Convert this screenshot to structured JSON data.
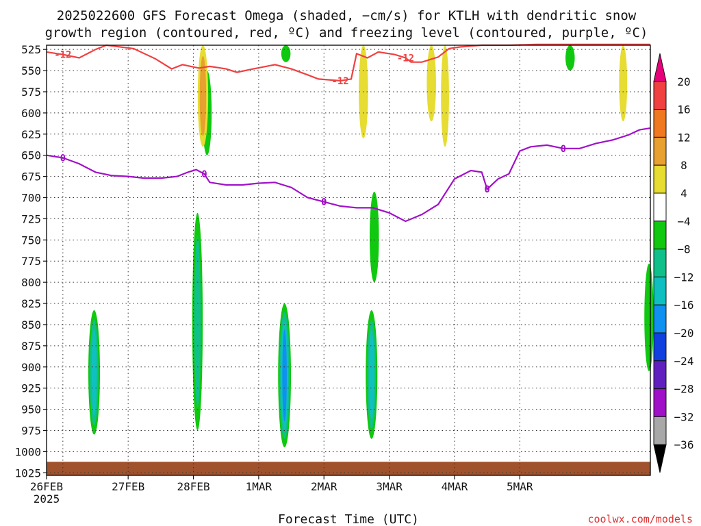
{
  "title_line1": "2025022600 GFS Forecast Omega (shaded, −cm/s) for KTLH with dendritic snow",
  "title_line2": "growth region (contoured, red, ºC) and freezing level (contoured, purple, ºC)",
  "credit": "coolwx.com/models",
  "chart_data": {
    "type": "time-height",
    "title": "2025022600 GFS Forecast Omega (shaded, −cm/s) for KTLH with dendritic snow growth region (contoured, red, ºC) and freezing level (contoured, purple, ºC)",
    "xlabel": "Forecast Time (UTC)",
    "x_ticks": [
      "26FEB",
      "27FEB",
      "28FEB",
      "1MAR",
      "2MAR",
      "3MAR",
      "4MAR",
      "5MAR"
    ],
    "x_tick_year": "2025",
    "xlim_hours": [
      0,
      222
    ],
    "y_ticks": [
      525,
      550,
      575,
      600,
      625,
      650,
      675,
      700,
      725,
      750,
      775,
      800,
      825,
      850,
      875,
      900,
      925,
      950,
      975,
      1000,
      1025
    ],
    "ylim_hPa": [
      520,
      1028
    ],
    "colorbar": {
      "ticks": [
        20,
        16,
        12,
        8,
        4,
        -4,
        -8,
        -12,
        -16,
        -20,
        -24,
        -28,
        -32,
        -36
      ],
      "bands": [
        {
          "lo": 20,
          "hi": 24,
          "color": "#e8007a"
        },
        {
          "lo": 16,
          "hi": 20,
          "color": "#f04040"
        },
        {
          "lo": 12,
          "hi": 16,
          "color": "#f07820"
        },
        {
          "lo": 8,
          "hi": 12,
          "color": "#e8a030"
        },
        {
          "lo": 4,
          "hi": 8,
          "color": "#e6dc32"
        },
        {
          "lo": -4,
          "hi": 4,
          "color": "#ffffff"
        },
        {
          "lo": -8,
          "hi": -4,
          "color": "#10c810"
        },
        {
          "lo": -12,
          "hi": -8,
          "color": "#10c08a"
        },
        {
          "lo": -16,
          "hi": -12,
          "color": "#10c0c0"
        },
        {
          "lo": -20,
          "hi": -16,
          "color": "#1090f0"
        },
        {
          "lo": -24,
          "hi": -20,
          "color": "#1040e0"
        },
        {
          "lo": -28,
          "hi": -24,
          "color": "#6020c0"
        },
        {
          "lo": -32,
          "hi": -28,
          "color": "#a010c8"
        },
        {
          "lo": -36,
          "hi": -32,
          "color": "#a8a8a8"
        },
        {
          "lo": -40,
          "hi": -36,
          "color": "#000000"
        }
      ]
    },
    "dendritic_minus12C_line": {
      "color": "#f04040",
      "label": "-12",
      "points": [
        [
          0,
          528
        ],
        [
          6,
          531
        ],
        [
          12,
          535
        ],
        [
          15,
          530
        ],
        [
          18,
          525
        ],
        [
          22,
          520
        ],
        [
          32,
          524
        ],
        [
          40,
          536
        ],
        [
          46,
          548
        ],
        [
          50,
          543
        ],
        [
          56,
          547
        ],
        [
          60,
          545
        ],
        [
          66,
          548
        ],
        [
          70,
          552
        ],
        [
          76,
          548
        ],
        [
          84,
          543
        ],
        [
          90,
          548
        ],
        [
          96,
          555
        ],
        [
          100,
          560
        ],
        [
          108,
          562
        ],
        [
          112,
          560
        ],
        [
          114,
          530
        ],
        [
          118,
          535
        ],
        [
          122,
          528
        ],
        [
          128,
          531
        ],
        [
          132,
          535
        ],
        [
          134,
          540
        ],
        [
          138,
          540
        ],
        [
          144,
          534
        ],
        [
          148,
          524
        ],
        [
          152,
          522
        ],
        [
          160,
          520
        ],
        [
          170,
          520
        ],
        [
          180,
          519
        ],
        [
          190,
          519
        ],
        [
          200,
          519
        ],
        [
          210,
          519
        ],
        [
          222,
          519
        ]
      ]
    },
    "freezing_level_0C_line": {
      "color": "#a010c8",
      "label": "0",
      "points": [
        [
          0,
          650
        ],
        [
          6,
          653
        ],
        [
          12,
          660
        ],
        [
          18,
          670
        ],
        [
          24,
          674
        ],
        [
          30,
          675
        ],
        [
          36,
          677
        ],
        [
          42,
          677
        ],
        [
          48,
          675
        ],
        [
          52,
          670
        ],
        [
          55,
          667
        ],
        [
          58,
          672
        ],
        [
          60,
          682
        ],
        [
          66,
          685
        ],
        [
          72,
          685
        ],
        [
          78,
          683
        ],
        [
          84,
          682
        ],
        [
          90,
          688
        ],
        [
          96,
          700
        ],
        [
          102,
          705
        ],
        [
          108,
          710
        ],
        [
          114,
          712
        ],
        [
          120,
          712
        ],
        [
          126,
          718
        ],
        [
          132,
          728
        ],
        [
          138,
          720
        ],
        [
          144,
          708
        ],
        [
          150,
          678
        ],
        [
          156,
          668
        ],
        [
          160,
          670
        ],
        [
          162,
          690
        ],
        [
          166,
          678
        ],
        [
          170,
          672
        ],
        [
          174,
          645
        ],
        [
          178,
          640
        ],
        [
          184,
          638
        ],
        [
          190,
          642
        ],
        [
          196,
          642
        ],
        [
          202,
          636
        ],
        [
          208,
          632
        ],
        [
          214,
          626
        ],
        [
          218,
          620
        ],
        [
          222,
          618
        ]
      ]
    },
    "omega_shaded_cells": [
      {
        "t": 17.5,
        "p_top": 833,
        "p_bot": 980,
        "max_abs_value": -16,
        "sign": "negative"
      },
      {
        "t": 55.5,
        "p_top": 718,
        "p_bot": 975,
        "max_abs_value": -12,
        "sign": "negative"
      },
      {
        "t": 87.5,
        "p_top": 825,
        "p_bot": 995,
        "max_abs_value": -20,
        "sign": "negative"
      },
      {
        "t": 119.5,
        "p_top": 833,
        "p_bot": 985,
        "max_abs_value": -16,
        "sign": "negative"
      },
      {
        "t": 120.5,
        "p_top": 693,
        "p_bot": 800,
        "max_abs_value": -8,
        "sign": "negative"
      },
      {
        "t": 59.0,
        "p_top": 550,
        "p_bot": 650,
        "max_abs_value": -8,
        "sign": "negative"
      },
      {
        "t": 88.0,
        "p_top": 520,
        "p_bot": 540,
        "max_abs_value": -8,
        "sign": "negative"
      },
      {
        "t": 192.5,
        "p_top": 520,
        "p_bot": 550,
        "max_abs_value": -8,
        "sign": "negative"
      },
      {
        "t": 221.5,
        "p_top": 778,
        "p_bot": 905,
        "max_abs_value": -8,
        "sign": "negative"
      },
      {
        "t": 57.5,
        "p_top": 520,
        "p_bot": 640,
        "max_abs_value": 12,
        "sign": "positive"
      },
      {
        "t": 116.5,
        "p_top": 520,
        "p_bot": 630,
        "max_abs_value": 8,
        "sign": "positive"
      },
      {
        "t": 141.5,
        "p_top": 520,
        "p_bot": 610,
        "max_abs_value": 8,
        "sign": "positive"
      },
      {
        "t": 146.5,
        "p_top": 520,
        "p_bot": 640,
        "max_abs_value": 4,
        "sign": "positive"
      },
      {
        "t": 212,
        "p_top": 520,
        "p_bot": 610,
        "max_abs_value": 4,
        "sign": "positive"
      }
    ],
    "surface_pressure_band": {
      "color": "#a0522d",
      "top_hPa": 1012,
      "bottom_hPa": 1028
    }
  }
}
